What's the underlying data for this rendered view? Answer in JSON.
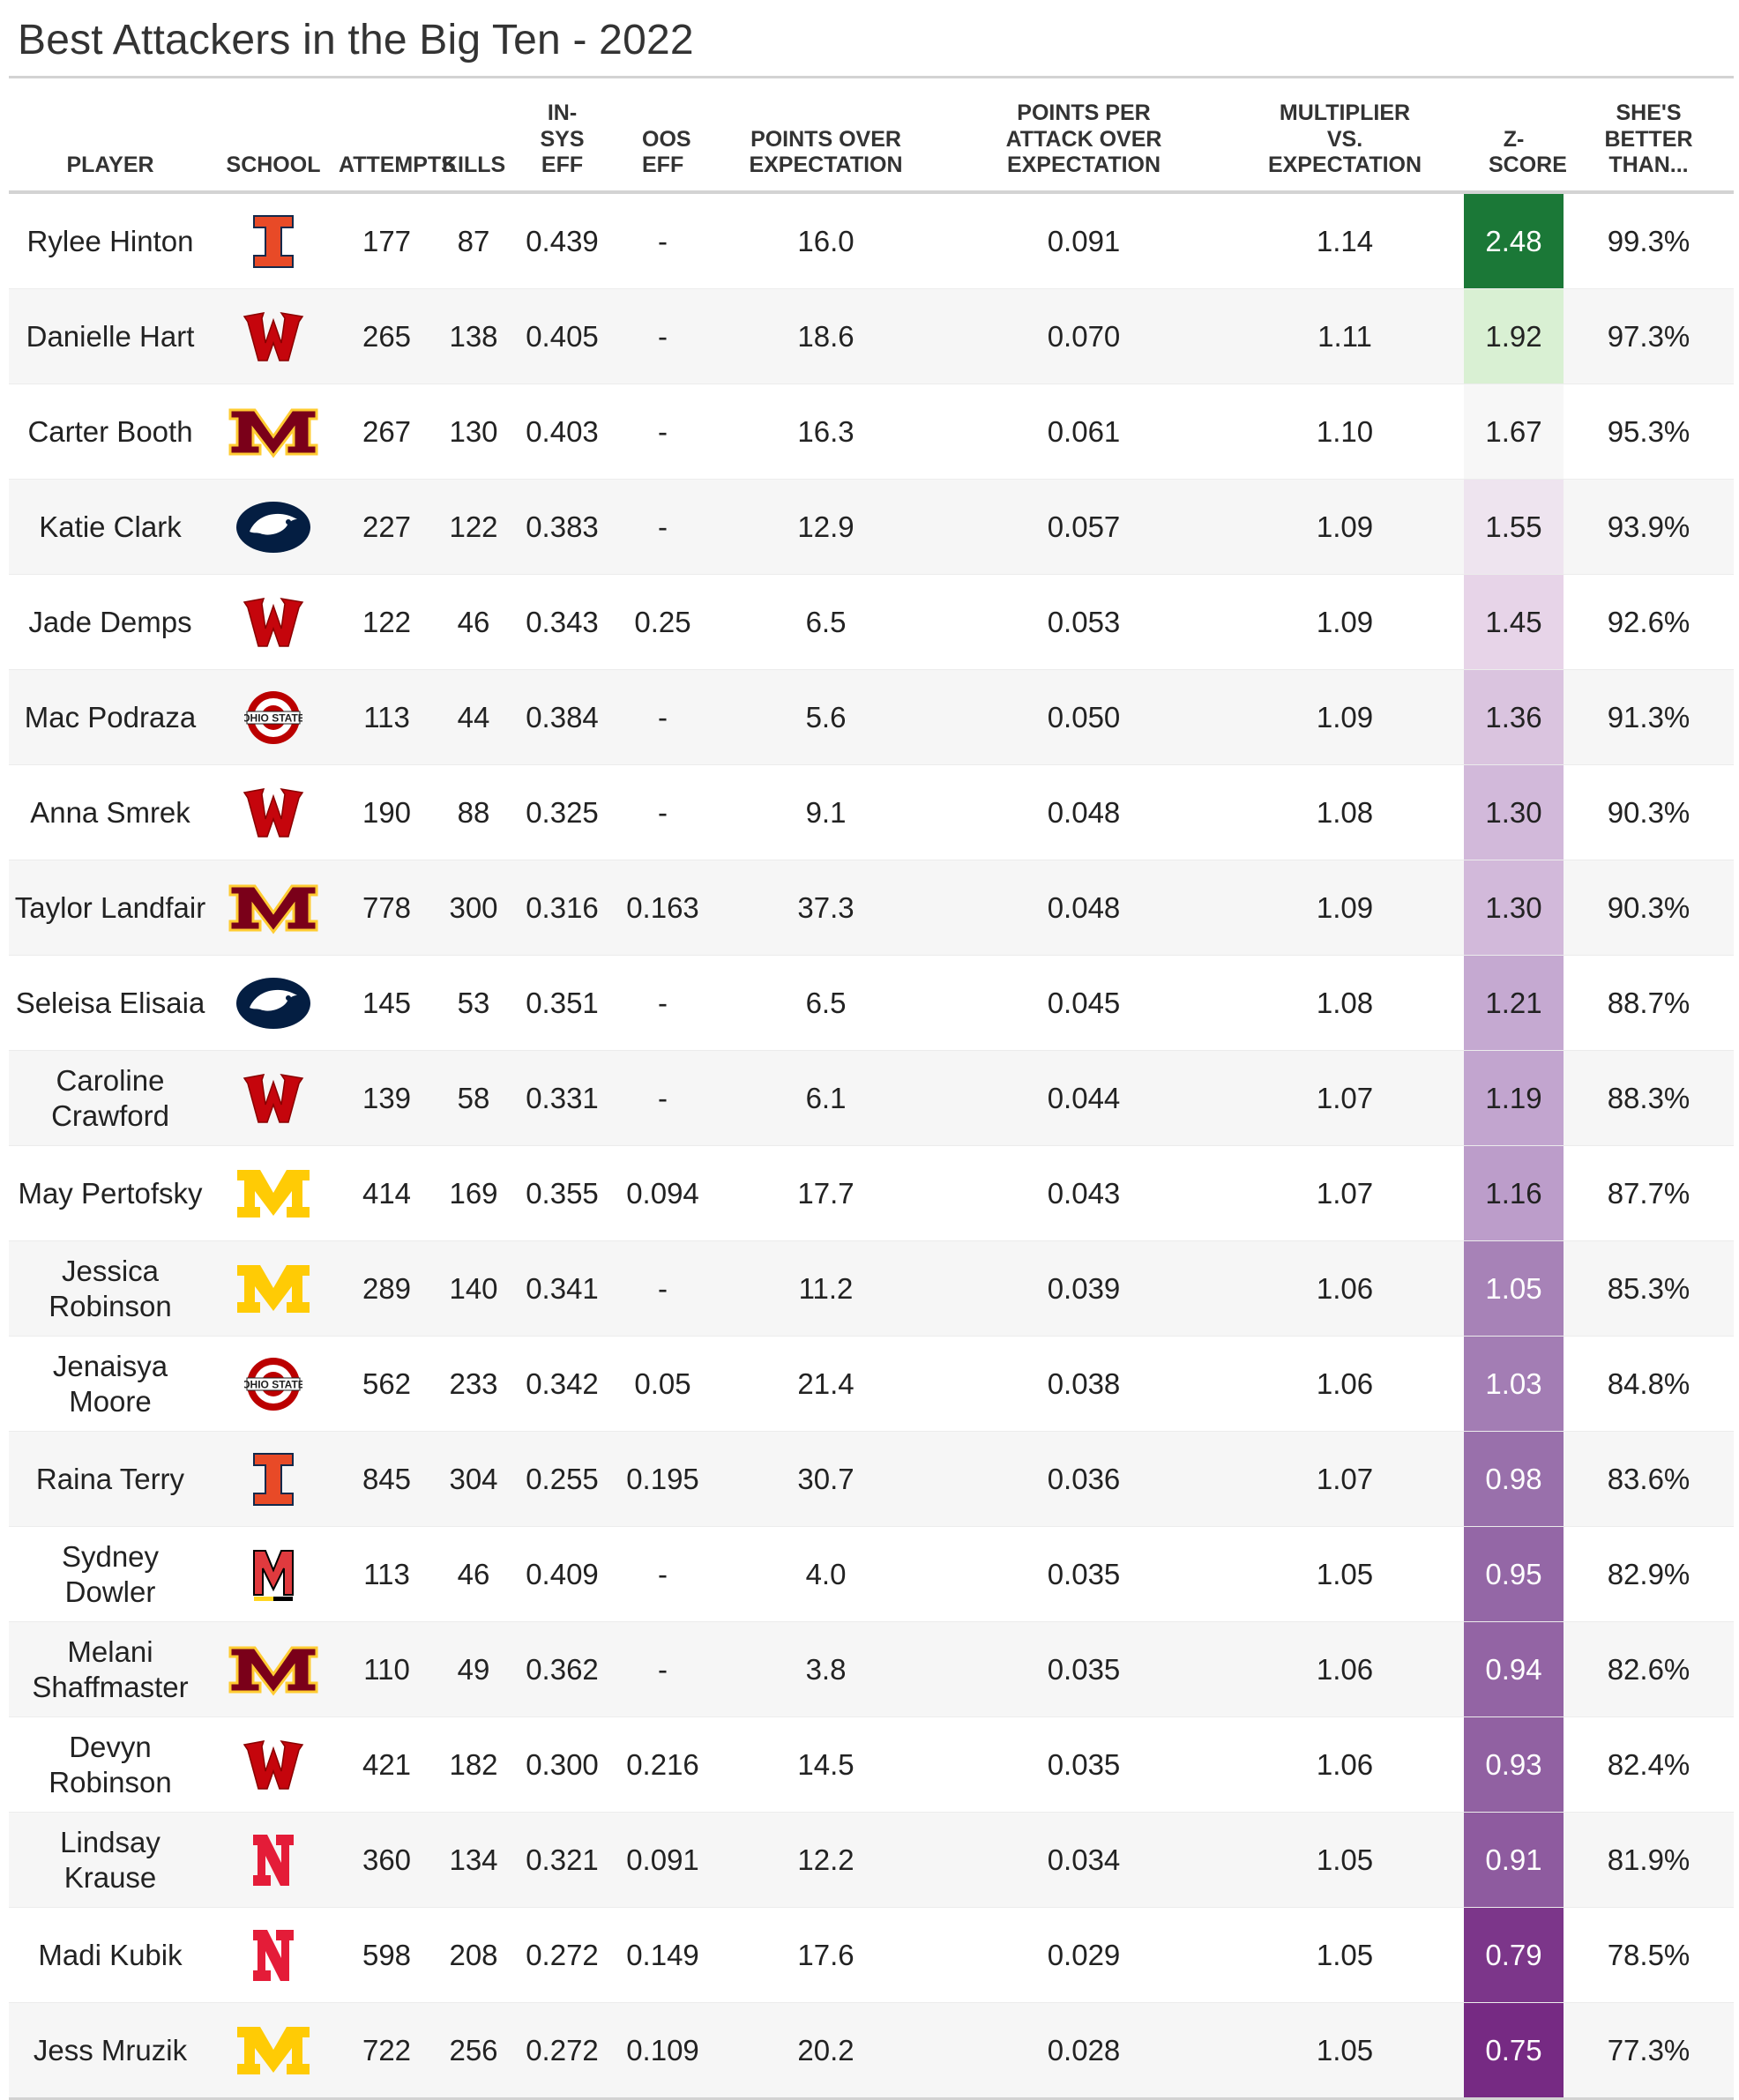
{
  "title": "Best Attackers in the Big Ten - 2022",
  "columns": {
    "player": "PLAYER",
    "school": "SCHOOL",
    "attempts": "ATTEMPTS",
    "kills": "KILLS",
    "insys": "IN-SYS EFF",
    "oos": "OOS EFF",
    "poe": "POINTS OVER EXPECTATION",
    "ppa": "POINTS PER ATTACK OVER EXPECTATION",
    "mult": "MULTIPLIER VS. EXPECTATION",
    "z": "Z-SCORE",
    "better": "SHE'S BETTER THAN..."
  },
  "z_colors": {
    "scale": [
      "#1b7837",
      "#d9f0d3",
      "#f7f7f7",
      "#e7d4e8",
      "#c2a5cf",
      "#9970ab",
      "#762a83"
    ],
    "dark_text": "#222222",
    "light_text": "#ffffff"
  },
  "chart_data": {
    "type": "table",
    "title": "Best Attackers in the Big Ten - 2022",
    "rows": [
      {
        "player": "Rylee Hinton",
        "school": "illinois-logo",
        "attempts": "177",
        "kills": "87",
        "insys": "0.439",
        "oos": "-",
        "poe": "16.0",
        "ppa": "0.091",
        "mult": "1.14",
        "z": "2.48",
        "better": "99.3%"
      },
      {
        "player": "Danielle Hart",
        "school": "wisconsin-logo",
        "attempts": "265",
        "kills": "138",
        "insys": "0.405",
        "oos": "-",
        "poe": "18.6",
        "ppa": "0.070",
        "mult": "1.11",
        "z": "1.92",
        "better": "97.3%"
      },
      {
        "player": "Carter Booth",
        "school": "minnesota-logo",
        "attempts": "267",
        "kills": "130",
        "insys": "0.403",
        "oos": "-",
        "poe": "16.3",
        "ppa": "0.061",
        "mult": "1.10",
        "z": "1.67",
        "better": "95.3%"
      },
      {
        "player": "Katie Clark",
        "school": "penn-state-logo",
        "attempts": "227",
        "kills": "122",
        "insys": "0.383",
        "oos": "-",
        "poe": "12.9",
        "ppa": "0.057",
        "mult": "1.09",
        "z": "1.55",
        "better": "93.9%"
      },
      {
        "player": "Jade Demps",
        "school": "wisconsin-logo",
        "attempts": "122",
        "kills": "46",
        "insys": "0.343",
        "oos": "0.25",
        "poe": "6.5",
        "ppa": "0.053",
        "mult": "1.09",
        "z": "1.45",
        "better": "92.6%"
      },
      {
        "player": "Mac Podraza",
        "school": "ohio-state-logo",
        "attempts": "113",
        "kills": "44",
        "insys": "0.384",
        "oos": "-",
        "poe": "5.6",
        "ppa": "0.050",
        "mult": "1.09",
        "z": "1.36",
        "better": "91.3%"
      },
      {
        "player": "Anna Smrek",
        "school": "wisconsin-logo",
        "attempts": "190",
        "kills": "88",
        "insys": "0.325",
        "oos": "-",
        "poe": "9.1",
        "ppa": "0.048",
        "mult": "1.08",
        "z": "1.30",
        "better": "90.3%"
      },
      {
        "player": "Taylor Landfair",
        "school": "minnesota-logo",
        "attempts": "778",
        "kills": "300",
        "insys": "0.316",
        "oos": "0.163",
        "poe": "37.3",
        "ppa": "0.048",
        "mult": "1.09",
        "z": "1.30",
        "better": "90.3%"
      },
      {
        "player": "Seleisa Elisaia",
        "school": "penn-state-logo",
        "attempts": "145",
        "kills": "53",
        "insys": "0.351",
        "oos": "-",
        "poe": "6.5",
        "ppa": "0.045",
        "mult": "1.08",
        "z": "1.21",
        "better": "88.7%"
      },
      {
        "player": "Caroline Crawford",
        "school": "wisconsin-logo",
        "attempts": "139",
        "kills": "58",
        "insys": "0.331",
        "oos": "-",
        "poe": "6.1",
        "ppa": "0.044",
        "mult": "1.07",
        "z": "1.19",
        "better": "88.3%"
      },
      {
        "player": "May Pertofsky",
        "school": "michigan-logo",
        "attempts": "414",
        "kills": "169",
        "insys": "0.355",
        "oos": "0.094",
        "poe": "17.7",
        "ppa": "0.043",
        "mult": "1.07",
        "z": "1.16",
        "better": "87.7%"
      },
      {
        "player": "Jessica Robinson",
        "school": "michigan-logo",
        "attempts": "289",
        "kills": "140",
        "insys": "0.341",
        "oos": "-",
        "poe": "11.2",
        "ppa": "0.039",
        "mult": "1.06",
        "z": "1.05",
        "better": "85.3%"
      },
      {
        "player": "Jenaisya Moore",
        "school": "ohio-state-logo",
        "attempts": "562",
        "kills": "233",
        "insys": "0.342",
        "oos": "0.05",
        "poe": "21.4",
        "ppa": "0.038",
        "mult": "1.06",
        "z": "1.03",
        "better": "84.8%"
      },
      {
        "player": "Raina Terry",
        "school": "illinois-logo",
        "attempts": "845",
        "kills": "304",
        "insys": "0.255",
        "oos": "0.195",
        "poe": "30.7",
        "ppa": "0.036",
        "mult": "1.07",
        "z": "0.98",
        "better": "83.6%"
      },
      {
        "player": "Sydney Dowler",
        "school": "maryland-logo",
        "attempts": "113",
        "kills": "46",
        "insys": "0.409",
        "oos": "-",
        "poe": "4.0",
        "ppa": "0.035",
        "mult": "1.05",
        "z": "0.95",
        "better": "82.9%"
      },
      {
        "player": "Melani Shaffmaster",
        "school": "minnesota-logo",
        "attempts": "110",
        "kills": "49",
        "insys": "0.362",
        "oos": "-",
        "poe": "3.8",
        "ppa": "0.035",
        "mult": "1.06",
        "z": "0.94",
        "better": "82.6%"
      },
      {
        "player": "Devyn Robinson",
        "school": "wisconsin-logo",
        "attempts": "421",
        "kills": "182",
        "insys": "0.300",
        "oos": "0.216",
        "poe": "14.5",
        "ppa": "0.035",
        "mult": "1.06",
        "z": "0.93",
        "better": "82.4%"
      },
      {
        "player": "Lindsay Krause",
        "school": "nebraska-logo",
        "attempts": "360",
        "kills": "134",
        "insys": "0.321",
        "oos": "0.091",
        "poe": "12.2",
        "ppa": "0.034",
        "mult": "1.05",
        "z": "0.91",
        "better": "81.9%"
      },
      {
        "player": "Madi Kubik",
        "school": "nebraska-logo",
        "attempts": "598",
        "kills": "208",
        "insys": "0.272",
        "oos": "0.149",
        "poe": "17.6",
        "ppa": "0.029",
        "mult": "1.05",
        "z": "0.79",
        "better": "78.5%"
      },
      {
        "player": "Jess Mruzik",
        "school": "michigan-logo",
        "attempts": "722",
        "kills": "256",
        "insys": "0.272",
        "oos": "0.109",
        "poe": "20.2",
        "ppa": "0.028",
        "mult": "1.05",
        "z": "0.75",
        "better": "77.3%"
      }
    ]
  }
}
